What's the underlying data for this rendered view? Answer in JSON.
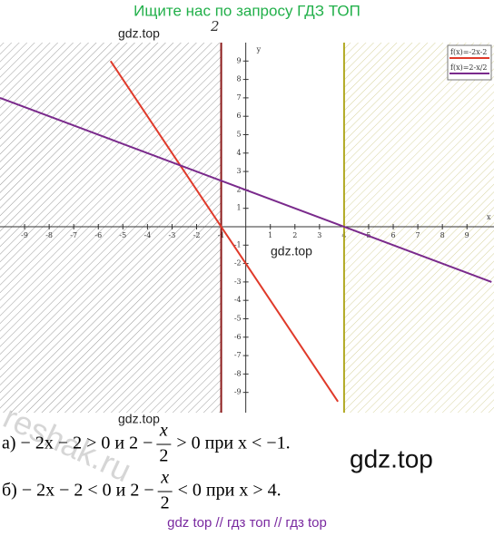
{
  "header": "Ищите нас по запросу ГДЗ ТОП",
  "watermarks": [
    "gdz.top",
    "gdz.top",
    "gdz.top",
    "gdz.top",
    "reshak.ru"
  ],
  "chart_data": {
    "type": "line",
    "annotation": "2",
    "xlabel": "x",
    "ylabel": "y",
    "x": [
      -10,
      -5.5,
      3.75,
      10
    ],
    "series": [
      {
        "name": "f(x)=-2x-2",
        "color": "#e03a2a",
        "values": [
          null,
          9,
          -9.5,
          null
        ]
      },
      {
        "name": "f(x)=2-x/2",
        "color": "#7a2a8c",
        "values": [
          7,
          4.75,
          0.125,
          -3
        ]
      }
    ],
    "vlines": [
      {
        "x": -1,
        "color": "#8b1a1a"
      },
      {
        "x": 4,
        "color": "#b0a820"
      }
    ],
    "xlim": [
      -10,
      10.1
    ],
    "ylim": [
      -10.1,
      10
    ],
    "xticks": [
      -9,
      -8,
      -7,
      -6,
      -5,
      -4,
      -3,
      -2,
      -1,
      1,
      2,
      3,
      4,
      5,
      6,
      7,
      8,
      9
    ],
    "yticks": [
      -9,
      -8,
      -7,
      -6,
      -5,
      -4,
      -3,
      -2,
      -1,
      1,
      2,
      3,
      4,
      5,
      6,
      7,
      8,
      9
    ]
  },
  "solution": [
    {
      "before": "а) − 2x − 2 > 0 и 2 −",
      "num": "x",
      "den": "2",
      "after": "> 0 при x < −1."
    },
    {
      "before": "б) − 2x − 2 < 0 и 2 −",
      "num": "x",
      "den": "2",
      "after": "< 0  при x > 4."
    }
  ],
  "footer": "gdz top  //  гдз топ  //  гдз top"
}
